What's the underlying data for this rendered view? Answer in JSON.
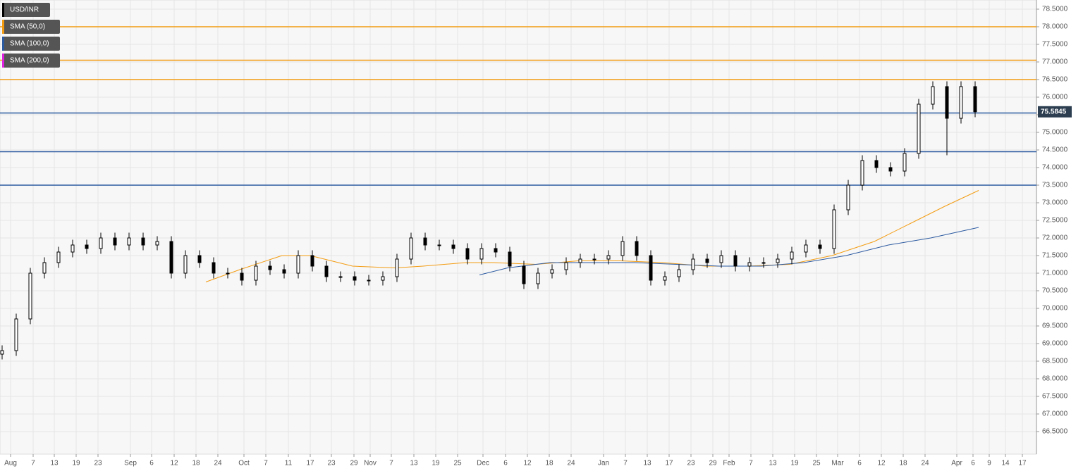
{
  "chart_data": {
    "type": "candlestick",
    "name": "USD/INR",
    "up_color": "#ffffff",
    "down_color": "#000000",
    "x": [
      0.6,
      4.6,
      8.6,
      12.6,
      16.6,
      20.6,
      24.6,
      28.6,
      32.6,
      36.6,
      40.6,
      44.6,
      48.6,
      52.6,
      56.6,
      60.6,
      64.6,
      68.6,
      72.6,
      76.6,
      80.6,
      84.6,
      88.6,
      92.6,
      96.6,
      100.6,
      104.6,
      108.6,
      112.6,
      116.6,
      120.6,
      124.6,
      128.6,
      132.6,
      136.6,
      140.6,
      144.6,
      148.6,
      152.6,
      156.6,
      160.6,
      164.6,
      168.6,
      172.6,
      176.6,
      180.6,
      184.6,
      188.6,
      192.6,
      196.6,
      200.6,
      204.6,
      208.6,
      212.6,
      216.6,
      220.6,
      224.6,
      228.6,
      232.6,
      236.6,
      240.6,
      244.6,
      248.6,
      252.6,
      256.6,
      260.6,
      264.6,
      268.6,
      272.6,
      276.6
    ],
    "open": [
      68.7,
      68.8,
      69.7,
      71.0,
      71.3,
      71.6,
      71.8,
      71.7,
      72.0,
      71.8,
      72.0,
      71.8,
      71.9,
      71.0,
      71.5,
      71.3,
      71.0,
      71.0,
      70.8,
      71.2,
      71.1,
      71.0,
      71.5,
      71.2,
      70.9,
      70.9,
      70.8,
      70.8,
      70.9,
      71.4,
      72.0,
      71.8,
      71.8,
      71.7,
      71.4,
      71.7,
      71.6,
      71.2,
      70.7,
      71.0,
      71.1,
      71.3,
      71.4,
      71.4,
      71.5,
      71.9,
      71.5,
      70.8,
      70.9,
      71.1,
      71.4,
      71.3,
      71.5,
      71.2,
      71.3,
      71.3,
      71.4,
      71.6,
      71.8,
      71.7,
      72.8,
      73.5,
      74.2,
      74.0,
      73.9,
      74.4,
      75.8,
      76.3,
      75.4,
      76.3
    ],
    "high": [
      68.95,
      69.85,
      71.15,
      71.45,
      71.75,
      71.95,
      71.95,
      72.15,
      72.15,
      72.15,
      72.15,
      72.05,
      72.05,
      71.65,
      71.65,
      71.45,
      71.15,
      71.15,
      71.35,
      71.35,
      71.25,
      71.65,
      71.65,
      71.35,
      71.05,
      71.05,
      70.95,
      71.05,
      71.55,
      72.15,
      72.15,
      71.95,
      71.95,
      71.85,
      71.85,
      71.85,
      71.75,
      71.35,
      71.15,
      71.25,
      71.45,
      71.55,
      71.55,
      71.65,
      72.05,
      72.05,
      71.65,
      71.05,
      71.25,
      71.55,
      71.55,
      71.65,
      71.65,
      71.45,
      71.45,
      71.55,
      71.75,
      71.95,
      71.95,
      72.95,
      73.65,
      74.35,
      74.35,
      74.15,
      74.55,
      75.95,
      76.45,
      76.45,
      76.45,
      76.45
    ],
    "low": [
      68.55,
      68.65,
      69.55,
      70.85,
      71.15,
      71.45,
      71.55,
      71.55,
      71.65,
      71.65,
      71.65,
      71.65,
      70.85,
      70.85,
      71.15,
      70.85,
      70.85,
      70.65,
      70.65,
      70.95,
      70.85,
      70.85,
      71.05,
      70.75,
      70.75,
      70.65,
      70.65,
      70.65,
      70.75,
      71.25,
      71.65,
      71.65,
      71.55,
      71.25,
      71.25,
      71.45,
      71.05,
      70.55,
      70.55,
      70.85,
      70.95,
      71.15,
      71.25,
      71.25,
      71.35,
      71.35,
      70.65,
      70.65,
      70.75,
      70.95,
      71.15,
      71.15,
      71.05,
      71.05,
      71.15,
      71.15,
      71.25,
      71.45,
      71.55,
      71.55,
      72.65,
      73.35,
      73.85,
      73.75,
      73.75,
      74.25,
      75.65,
      74.35,
      75.25,
      75.43
    ],
    "close": [
      68.8,
      69.7,
      71.0,
      71.3,
      71.6,
      71.8,
      71.7,
      72.0,
      71.8,
      72.0,
      71.8,
      71.9,
      71.0,
      71.5,
      71.3,
      71.0,
      71.0,
      70.8,
      71.2,
      71.1,
      71.0,
      71.5,
      71.2,
      70.9,
      70.9,
      70.8,
      70.8,
      70.9,
      71.4,
      72.0,
      71.8,
      71.8,
      71.7,
      71.4,
      71.7,
      71.6,
      71.2,
      70.7,
      71.0,
      71.1,
      71.3,
      71.4,
      71.4,
      71.5,
      71.9,
      71.5,
      70.8,
      70.9,
      71.1,
      71.4,
      71.3,
      71.5,
      71.2,
      71.3,
      71.3,
      71.4,
      71.6,
      71.8,
      71.7,
      72.8,
      73.5,
      74.2,
      74.0,
      73.9,
      74.4,
      75.8,
      76.3,
      75.4,
      76.3,
      75.5845
    ],
    "last_price": 75.5845,
    "series": [
      {
        "name": "SMA (50,0)",
        "color": "#f39c12",
        "x": [
          58.4,
          68,
          80,
          88,
          100,
          112,
          120,
          132,
          140,
          152,
          164,
          176,
          188,
          200,
          212,
          224,
          236,
          248,
          260,
          268,
          277.6
        ],
        "values": [
          70.75,
          71.1,
          71.5,
          71.5,
          71.2,
          71.15,
          71.2,
          71.3,
          71.3,
          71.25,
          71.35,
          71.35,
          71.3,
          71.2,
          71.2,
          71.25,
          71.5,
          71.9,
          72.5,
          72.9,
          73.35
        ]
      },
      {
        "name": "SMA (100,0)",
        "color": "#2c5aa0",
        "x": [
          136,
          144,
          156,
          168,
          180,
          192,
          204,
          216,
          228,
          240,
          252,
          264,
          277.6
        ],
        "values": [
          70.95,
          71.15,
          71.3,
          71.3,
          71.3,
          71.25,
          71.2,
          71.2,
          71.3,
          71.5,
          71.8,
          72.0,
          72.3
        ]
      },
      {
        "name": "SMA (200,0)",
        "color": "#e020e0"
      }
    ],
    "hlines": [
      {
        "value": 78.0,
        "color": "#f39c12"
      },
      {
        "value": 77.05,
        "color": "#f39c12"
      },
      {
        "value": 76.5,
        "color": "#f39c12"
      },
      {
        "value": 75.55,
        "color": "#2c5aa0"
      },
      {
        "value": 74.45,
        "color": "#2c5aa0"
      },
      {
        "value": 73.5,
        "color": "#2c5aa0"
      }
    ],
    "xlim": [
      0,
      294
    ],
    "ylim": [
      65.86,
      78.76
    ],
    "grid": true,
    "xticks": [
      {
        "value": 3,
        "label": "Aug"
      },
      {
        "value": 9.4,
        "label": "7"
      },
      {
        "value": 15.4,
        "label": "13"
      },
      {
        "value": 21.6,
        "label": "19"
      },
      {
        "value": 27.8,
        "label": "23"
      },
      {
        "value": 37,
        "label": "Sep"
      },
      {
        "value": 43,
        "label": "6"
      },
      {
        "value": 49.4,
        "label": "12"
      },
      {
        "value": 55.6,
        "label": "18"
      },
      {
        "value": 61.8,
        "label": "24"
      },
      {
        "value": 69.2,
        "label": "Oct"
      },
      {
        "value": 75.4,
        "label": "7"
      },
      {
        "value": 81.8,
        "label": "11"
      },
      {
        "value": 88,
        "label": "17"
      },
      {
        "value": 94,
        "label": "23"
      },
      {
        "value": 100.4,
        "label": "29"
      },
      {
        "value": 105,
        "label": "Nov"
      },
      {
        "value": 111,
        "label": "7"
      },
      {
        "value": 117.4,
        "label": "13"
      },
      {
        "value": 123.6,
        "label": "19"
      },
      {
        "value": 129.8,
        "label": "25"
      },
      {
        "value": 137,
        "label": "Dec"
      },
      {
        "value": 143.4,
        "label": "6"
      },
      {
        "value": 149.6,
        "label": "12"
      },
      {
        "value": 155.8,
        "label": "18"
      },
      {
        "value": 162,
        "label": "24"
      },
      {
        "value": 171.2,
        "label": "Jan"
      },
      {
        "value": 177.4,
        "label": "7"
      },
      {
        "value": 183.6,
        "label": "13"
      },
      {
        "value": 189.8,
        "label": "17"
      },
      {
        "value": 196,
        "label": "23"
      },
      {
        "value": 202.2,
        "label": "29"
      },
      {
        "value": 206.8,
        "label": "Feb"
      },
      {
        "value": 213,
        "label": "7"
      },
      {
        "value": 219.2,
        "label": "13"
      },
      {
        "value": 225.4,
        "label": "19"
      },
      {
        "value": 231.6,
        "label": "25"
      },
      {
        "value": 237.6,
        "label": "Mar"
      },
      {
        "value": 243.8,
        "label": "6"
      },
      {
        "value": 250,
        "label": "12"
      },
      {
        "value": 256.2,
        "label": "18"
      },
      {
        "value": 262.4,
        "label": "24"
      },
      {
        "value": 271.4,
        "label": "Apr"
      },
      {
        "value": 276,
        "label": "6"
      },
      {
        "value": 280.6,
        "label": "9"
      },
      {
        "value": 285.2,
        "label": "14"
      },
      {
        "value": 290,
        "label": "17"
      }
    ],
    "yticks": [
      {
        "value": 66.5,
        "label": "66.5000"
      },
      {
        "value": 67,
        "label": "67.0000"
      },
      {
        "value": 67.5,
        "label": "67.5000"
      },
      {
        "value": 68,
        "label": "68.0000"
      },
      {
        "value": 68.5,
        "label": "68.5000"
      },
      {
        "value": 69,
        "label": "69.0000"
      },
      {
        "value": 69.5,
        "label": "69.5000"
      },
      {
        "value": 70,
        "label": "70.0000"
      },
      {
        "value": 70.5,
        "label": "70.5000"
      },
      {
        "value": 71,
        "label": "71.0000"
      },
      {
        "value": 71.5,
        "label": "71.5000"
      },
      {
        "value": 72,
        "label": "72.0000"
      },
      {
        "value": 72.5,
        "label": "72.5000"
      },
      {
        "value": 73,
        "label": "73.0000"
      },
      {
        "value": 73.5,
        "label": "73.5000"
      },
      {
        "value": 74,
        "label": "74.0000"
      },
      {
        "value": 74.5,
        "label": "74.5000"
      },
      {
        "value": 75,
        "label": "75.0000"
      },
      {
        "value": 75.5,
        "label": "75.5000"
      },
      {
        "value": 76,
        "label": "76.0000"
      },
      {
        "value": 76.5,
        "label": "76.5000"
      },
      {
        "value": 77,
        "label": "77.0000"
      },
      {
        "value": 77.5,
        "label": "77.5000"
      },
      {
        "value": 78,
        "label": "78.0000"
      },
      {
        "value": 78.5,
        "label": "78.5000"
      }
    ]
  }
}
